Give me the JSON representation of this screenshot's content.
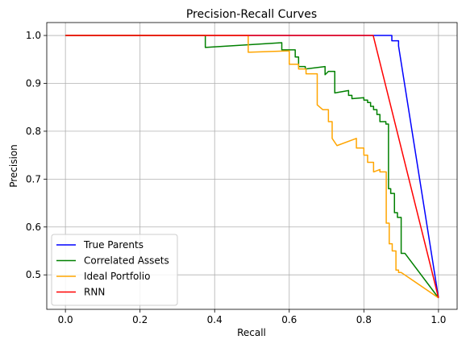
{
  "chart_data": {
    "type": "line",
    "title": "Precision-Recall Curves",
    "xlabel": "Recall",
    "ylabel": "Precision",
    "xlim": [
      -0.05,
      1.05
    ],
    "ylim": [
      0.428,
      1.027
    ],
    "xticks": [
      0.0,
      0.2,
      0.4,
      0.6,
      0.8,
      1.0
    ],
    "xtick_labels": [
      "0.0",
      "0.2",
      "0.4",
      "0.6",
      "0.8",
      "1.0"
    ],
    "yticks": [
      0.5,
      0.6,
      0.7,
      0.8,
      0.9,
      1.0
    ],
    "ytick_labels": [
      "0.5",
      "0.6",
      "0.7",
      "0.8",
      "0.9",
      "1.0"
    ],
    "grid": true,
    "legend_position": "lower-left",
    "series": [
      {
        "name": "True Parents",
        "color": "#0000ff",
        "x": [
          0.0,
          0.875,
          0.875,
          0.893,
          0.893,
          1.0
        ],
        "y": [
          1.0,
          1.0,
          0.989,
          0.989,
          0.978,
          0.452
        ]
      },
      {
        "name": "Correlated Assets",
        "color": "#008000",
        "x": [
          0.0,
          0.375,
          0.375,
          0.58,
          0.58,
          0.616,
          0.616,
          0.625,
          0.625,
          0.643,
          0.643,
          0.696,
          0.696,
          0.705,
          0.705,
          0.722,
          0.722,
          0.759,
          0.759,
          0.768,
          0.768,
          0.8,
          0.8,
          0.81,
          0.81,
          0.818,
          0.818,
          0.826,
          0.826,
          0.835,
          0.835,
          0.843,
          0.843,
          0.859,
          0.859,
          0.866,
          0.866,
          0.872,
          0.872,
          0.882,
          0.882,
          0.89,
          0.89,
          0.9,
          0.9,
          0.91,
          0.91,
          1.0
        ],
        "y": [
          1.0,
          1.0,
          0.975,
          0.985,
          0.97,
          0.97,
          0.955,
          0.955,
          0.935,
          0.935,
          0.93,
          0.935,
          0.918,
          0.925,
          0.925,
          0.925,
          0.88,
          0.885,
          0.875,
          0.875,
          0.868,
          0.87,
          0.865,
          0.865,
          0.86,
          0.86,
          0.852,
          0.852,
          0.845,
          0.845,
          0.835,
          0.835,
          0.82,
          0.82,
          0.815,
          0.815,
          0.68,
          0.68,
          0.67,
          0.67,
          0.63,
          0.63,
          0.62,
          0.62,
          0.545,
          0.545,
          0.545,
          0.452
        ]
      },
      {
        "name": "Ideal Portfolio",
        "color": "#ffa500",
        "x": [
          0.0,
          0.49,
          0.49,
          0.6,
          0.6,
          0.625,
          0.625,
          0.645,
          0.645,
          0.675,
          0.675,
          0.69,
          0.69,
          0.705,
          0.705,
          0.715,
          0.715,
          0.728,
          0.728,
          0.78,
          0.78,
          0.8,
          0.8,
          0.81,
          0.81,
          0.826,
          0.826,
          0.843,
          0.843,
          0.86,
          0.86,
          0.868,
          0.868,
          0.876,
          0.876,
          0.886,
          0.886,
          0.893,
          0.893,
          0.9,
          0.9,
          1.0
        ],
        "y": [
          1.0,
          1.0,
          0.965,
          0.968,
          0.94,
          0.94,
          0.93,
          0.93,
          0.92,
          0.92,
          0.855,
          0.845,
          0.845,
          0.845,
          0.82,
          0.82,
          0.785,
          0.77,
          0.77,
          0.785,
          0.765,
          0.765,
          0.75,
          0.75,
          0.735,
          0.735,
          0.715,
          0.72,
          0.715,
          0.715,
          0.608,
          0.608,
          0.565,
          0.565,
          0.55,
          0.55,
          0.51,
          0.51,
          0.505,
          0.505,
          0.505,
          0.452
        ]
      },
      {
        "name": "RNN",
        "color": "#ff0000",
        "x": [
          0.0,
          0.825,
          1.0
        ],
        "y": [
          1.0,
          1.0,
          0.452
        ]
      }
    ]
  }
}
